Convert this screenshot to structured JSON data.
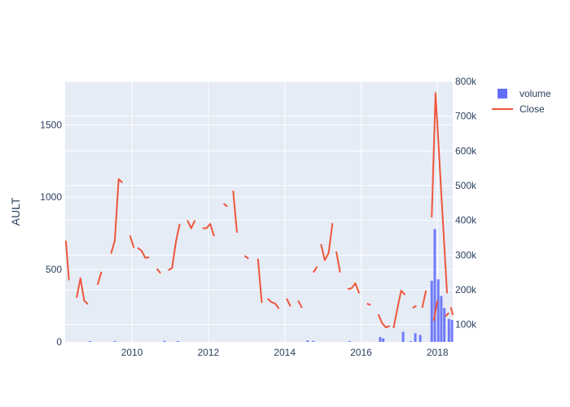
{
  "chart_data": {
    "type": "line",
    "title": "",
    "xlabel": "",
    "ylabel": "AULT",
    "y2label": "",
    "x_tick_labels": [
      "2010",
      "2012",
      "2014",
      "2016",
      "2018"
    ],
    "x_tick_values": [
      2010,
      2012,
      2014,
      2016,
      2018
    ],
    "xlim": [
      2008.25,
      2018.4
    ],
    "ylim": [
      0,
      1800
    ],
    "y_tick_labels": [
      "0",
      "500",
      "1000",
      "1500"
    ],
    "y_tick_values": [
      0,
      500,
      1000,
      1500
    ],
    "y2lim": [
      50000,
      800000
    ],
    "y2_tick_labels": [
      "100k",
      "200k",
      "300k",
      "400k",
      "500k",
      "600k",
      "700k",
      "800k"
    ],
    "y2_tick_values": [
      100000,
      200000,
      300000,
      400000,
      500000,
      600000,
      700000,
      800000
    ],
    "grid": true,
    "legend_position": "top-right",
    "colors": {
      "volume": "#636efa",
      "close": "#ef553b",
      "plot_bg": "#e5ecf6",
      "grid": "#ffffff",
      "text": "#2a3f5f"
    },
    "series": [
      {
        "name": "volume",
        "kind": "bar",
        "x": [
          2008.9,
          2009.55,
          2010.85,
          2011.2,
          2014.6,
          2014.75,
          2015.7,
          2016.5,
          2016.58,
          2017.1,
          2017.3,
          2017.42,
          2017.55,
          2017.85,
          2017.93,
          2018.02,
          2018.1,
          2018.18,
          2018.3,
          2018.38
        ],
        "values": [
          51000,
          51000,
          53000,
          51000,
          54000,
          53000,
          51000,
          64000,
          60000,
          79000,
          52000,
          75000,
          70000,
          226000,
          375000,
          230000,
          182000,
          148000,
          116000,
          113000
        ]
      },
      {
        "name": "Close",
        "kind": "line",
        "segments": [
          {
            "x": [
              2008.27,
              2008.35
            ],
            "y": [
              700,
              425
            ]
          },
          {
            "x": [
              2008.55,
              2008.65,
              2008.75,
              2008.85
            ],
            "y": [
              305,
              440,
              285,
              260
            ]
          },
          {
            "x": [
              2009.1,
              2009.2
            ],
            "y": [
              395,
              485
            ]
          },
          {
            "x": [
              2009.45,
              2009.55,
              2009.65,
              2009.75
            ],
            "y": [
              610,
              700,
              1125,
              1100
            ]
          },
          {
            "x": [
              2009.95,
              2010.05
            ],
            "y": [
              735,
              650
            ]
          },
          {
            "x": [
              2010.15,
              2010.25,
              2010.35,
              2010.45
            ],
            "y": [
              650,
              630,
              580,
              585
            ]
          },
          {
            "x": [
              2010.65,
              2010.75
            ],
            "y": [
              505,
              475
            ]
          },
          {
            "x": [
              2010.95,
              2011.05,
              2011.15,
              2011.25
            ],
            "y": [
              495,
              510,
              690,
              815
            ]
          },
          {
            "x": [
              2011.45,
              2011.55,
              2011.65
            ],
            "y": [
              840,
              785,
              840
            ]
          },
          {
            "x": [
              2011.85,
              2011.95,
              2012.05,
              2012.15
            ],
            "y": [
              785,
              785,
              815,
              730
            ]
          },
          {
            "x": [
              2012.4,
              2012.5
            ],
            "y": [
              955,
              935
            ]
          },
          {
            "x": [
              2012.65,
              2012.75
            ],
            "y": [
              1045,
              755
            ]
          },
          {
            "x": [
              2012.95,
              2013.05
            ],
            "y": [
              595,
              575
            ]
          },
          {
            "x": [
              2013.3,
              2013.4
            ],
            "y": [
              575,
              270
            ]
          },
          {
            "x": [
              2013.55,
              2013.65,
              2013.75,
              2013.85
            ],
            "y": [
              300,
              275,
              265,
              230
            ]
          },
          {
            "x": [
              2014.05,
              2014.15
            ],
            "y": [
              300,
              245
            ]
          },
          {
            "x": [
              2014.35,
              2014.45
            ],
            "y": [
              285,
              235
            ]
          },
          {
            "x": [
              2014.75,
              2014.85
            ],
            "y": [
              480,
              520
            ]
          },
          {
            "x": [
              2014.95,
              2015.05,
              2015.15,
              2015.25
            ],
            "y": [
              675,
              565,
              615,
              820
            ]
          },
          {
            "x": [
              2015.35,
              2015.45
            ],
            "y": [
              625,
              480
            ]
          },
          {
            "x": [
              2015.65,
              2015.75,
              2015.85,
              2015.95
            ],
            "y": [
              365,
              370,
              405,
              335
            ]
          },
          {
            "x": [
              2016.15,
              2016.25
            ],
            "y": [
              265,
              255
            ]
          },
          {
            "x": [
              2016.45,
              2016.55,
              2016.65,
              2016.75
            ],
            "y": [
              190,
              130,
              100,
              110
            ]
          },
          {
            "x": [
              2016.85,
              2016.95,
              2017.05,
              2017.15
            ],
            "y": [
              95,
              230,
              355,
              325
            ]
          },
          {
            "x": [
              2017.35,
              2017.45
            ],
            "y": [
              235,
              250
            ]
          },
          {
            "x": [
              2017.6,
              2017.7
            ],
            "y": [
              235,
              355
            ]
          },
          {
            "x": [
              2017.9,
              2018.0
            ],
            "y": [
              145,
              285
            ]
          },
          {
            "x": [
              2018.2,
              2018.3
            ],
            "y": [
              175,
              200
            ]
          },
          {
            "x": [
              2017.85,
              2017.95,
              2018.25
            ],
            "y": [
              860,
              1720,
              335
            ]
          },
          {
            "x": [
              2018.35,
              2018.4
            ],
            "y": [
              240,
              185
            ]
          }
        ]
      }
    ]
  }
}
